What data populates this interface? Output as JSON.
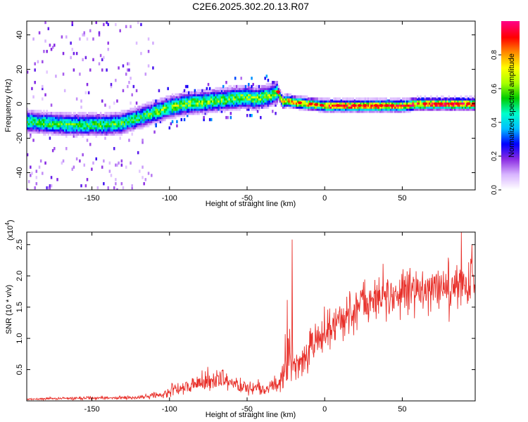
{
  "title": "C2E6.2025.302.20.13.R07",
  "chart_data": [
    {
      "type": "heatmap",
      "panel": "spectrogram",
      "xlabel": "Height of straight line (km)",
      "ylabel": "Frequency (Hz)",
      "xlim": [
        -192,
        97
      ],
      "ylim": [
        -50,
        48
      ],
      "x_ticks": [
        -150,
        -100,
        -50,
        0,
        50
      ],
      "y_ticks": [
        -40,
        -20,
        0,
        20,
        40
      ],
      "ridge": {
        "x": [
          -192,
          -180,
          -165,
          -150,
          -140,
          -130,
          -120,
          -110,
          -100,
          -90,
          -80,
          -70,
          -60,
          -50,
          -45,
          -40,
          -35,
          -30,
          -27,
          -24,
          -20,
          -10,
          0,
          10,
          20,
          30,
          40,
          50,
          60,
          70,
          80,
          90,
          97
        ],
        "y": [
          -10,
          -11,
          -12,
          -12,
          -12,
          -11,
          -8,
          -5,
          -2,
          0,
          1,
          2,
          3,
          4,
          3,
          4,
          5,
          7,
          1,
          2,
          1,
          0,
          -1,
          -1,
          -1,
          -1,
          -1,
          -1,
          0,
          0,
          0,
          0,
          0
        ]
      },
      "colorbar": {
        "label": "Normalized spectral amplitude",
        "range": [
          0.0,
          1.0
        ],
        "ticks": [
          0.0,
          0.2,
          0.4,
          0.6,
          0.8
        ],
        "tick_labels": [
          "0.0",
          "0.2",
          "0.4",
          "0.6",
          "0.8"
        ],
        "colors": [
          "#ffffff",
          "#d8b4ff",
          "#8a2be2",
          "#0000ff",
          "#00bfff",
          "#00ffcc",
          "#00cc00",
          "#aaff00",
          "#ffff00",
          "#ff8c00",
          "#ff0000",
          "#ff0080"
        ]
      }
    },
    {
      "type": "line",
      "panel": "snr",
      "xlabel": "Height of straight line (km)",
      "ylabel": "SNR (10 * v/v)",
      "multiplier_label": "(x10",
      "multiplier_exp": "4",
      "multiplier_close": ")",
      "xlim": [
        -192,
        97
      ],
      "ylim": [
        0,
        2.7
      ],
      "x_ticks": [
        -150,
        -100,
        -50,
        0,
        50
      ],
      "y_ticks": [
        0.5,
        1.0,
        1.5,
        2.0,
        2.5
      ],
      "y_tick_labels": [
        "0.5",
        "1.0",
        "1.5",
        "2.0",
        "2.5"
      ],
      "series_color": "#e8302a",
      "envelope": {
        "x": [
          -192,
          -170,
          -150,
          -130,
          -120,
          -115,
          -110,
          -105,
          -100,
          -95,
          -90,
          -85,
          -80,
          -75,
          -70,
          -65,
          -60,
          -55,
          -50,
          -45,
          -40,
          -35,
          -30,
          -27,
          -25,
          -24,
          -23,
          -22,
          -21,
          -20,
          -15,
          -10,
          -5,
          0,
          10,
          20,
          30,
          40,
          50,
          60,
          70,
          80,
          90,
          97
        ],
        "mean": [
          0.03,
          0.04,
          0.05,
          0.05,
          0.05,
          0.07,
          0.09,
          0.11,
          0.14,
          0.19,
          0.23,
          0.27,
          0.29,
          0.32,
          0.35,
          0.33,
          0.29,
          0.24,
          0.21,
          0.19,
          0.18,
          0.2,
          0.25,
          0.4,
          0.65,
          1.0,
          1.2,
          0.9,
          0.7,
          0.55,
          0.65,
          0.8,
          0.95,
          1.1,
          1.3,
          1.5,
          1.6,
          1.65,
          1.75,
          1.8,
          1.82,
          1.82,
          1.9,
          1.95
        ],
        "amplitude": [
          0.02,
          0.02,
          0.03,
          0.03,
          0.03,
          0.05,
          0.06,
          0.08,
          0.1,
          0.12,
          0.14,
          0.16,
          0.17,
          0.18,
          0.2,
          0.18,
          0.17,
          0.15,
          0.14,
          0.12,
          0.12,
          0.14,
          0.18,
          0.25,
          0.5,
          1.3,
          0.8,
          0.6,
          0.4,
          0.25,
          0.3,
          0.35,
          0.35,
          0.35,
          0.35,
          0.4,
          0.4,
          0.4,
          0.4,
          0.4,
          0.4,
          0.4,
          0.45,
          0.5
        ]
      },
      "peaks": [
        {
          "x": -21.0,
          "y": 2.58
        },
        {
          "x": 88.0,
          "y": 2.7
        },
        {
          "x": 95.0,
          "y": 2.5
        }
      ]
    }
  ]
}
